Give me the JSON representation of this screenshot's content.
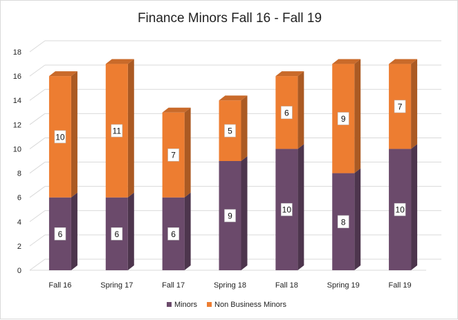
{
  "chart_data": {
    "type": "bar",
    "stacked": true,
    "three_d": true,
    "title": "Finance Minors Fall 16 - Fall 19",
    "xlabel": "",
    "ylabel": "",
    "categories": [
      "Fall 16",
      "Spring 17",
      "Fall 17",
      "Spring 18",
      "Fall 18",
      "Spring 19",
      "Fall 19"
    ],
    "series": [
      {
        "name": "Minors",
        "values": [
          6,
          6,
          6,
          9,
          10,
          8,
          10
        ],
        "color": "#6b4a6b"
      },
      {
        "name": "Non Business Minors",
        "values": [
          10,
          11,
          7,
          5,
          6,
          9,
          7
        ],
        "color": "#ed7d31"
      }
    ],
    "ylim": [
      0,
      18
    ],
    "yticks": [
      0,
      2,
      4,
      6,
      8,
      10,
      12,
      14,
      16,
      18
    ],
    "grid": true,
    "legend_position": "bottom",
    "data_labels": true
  }
}
